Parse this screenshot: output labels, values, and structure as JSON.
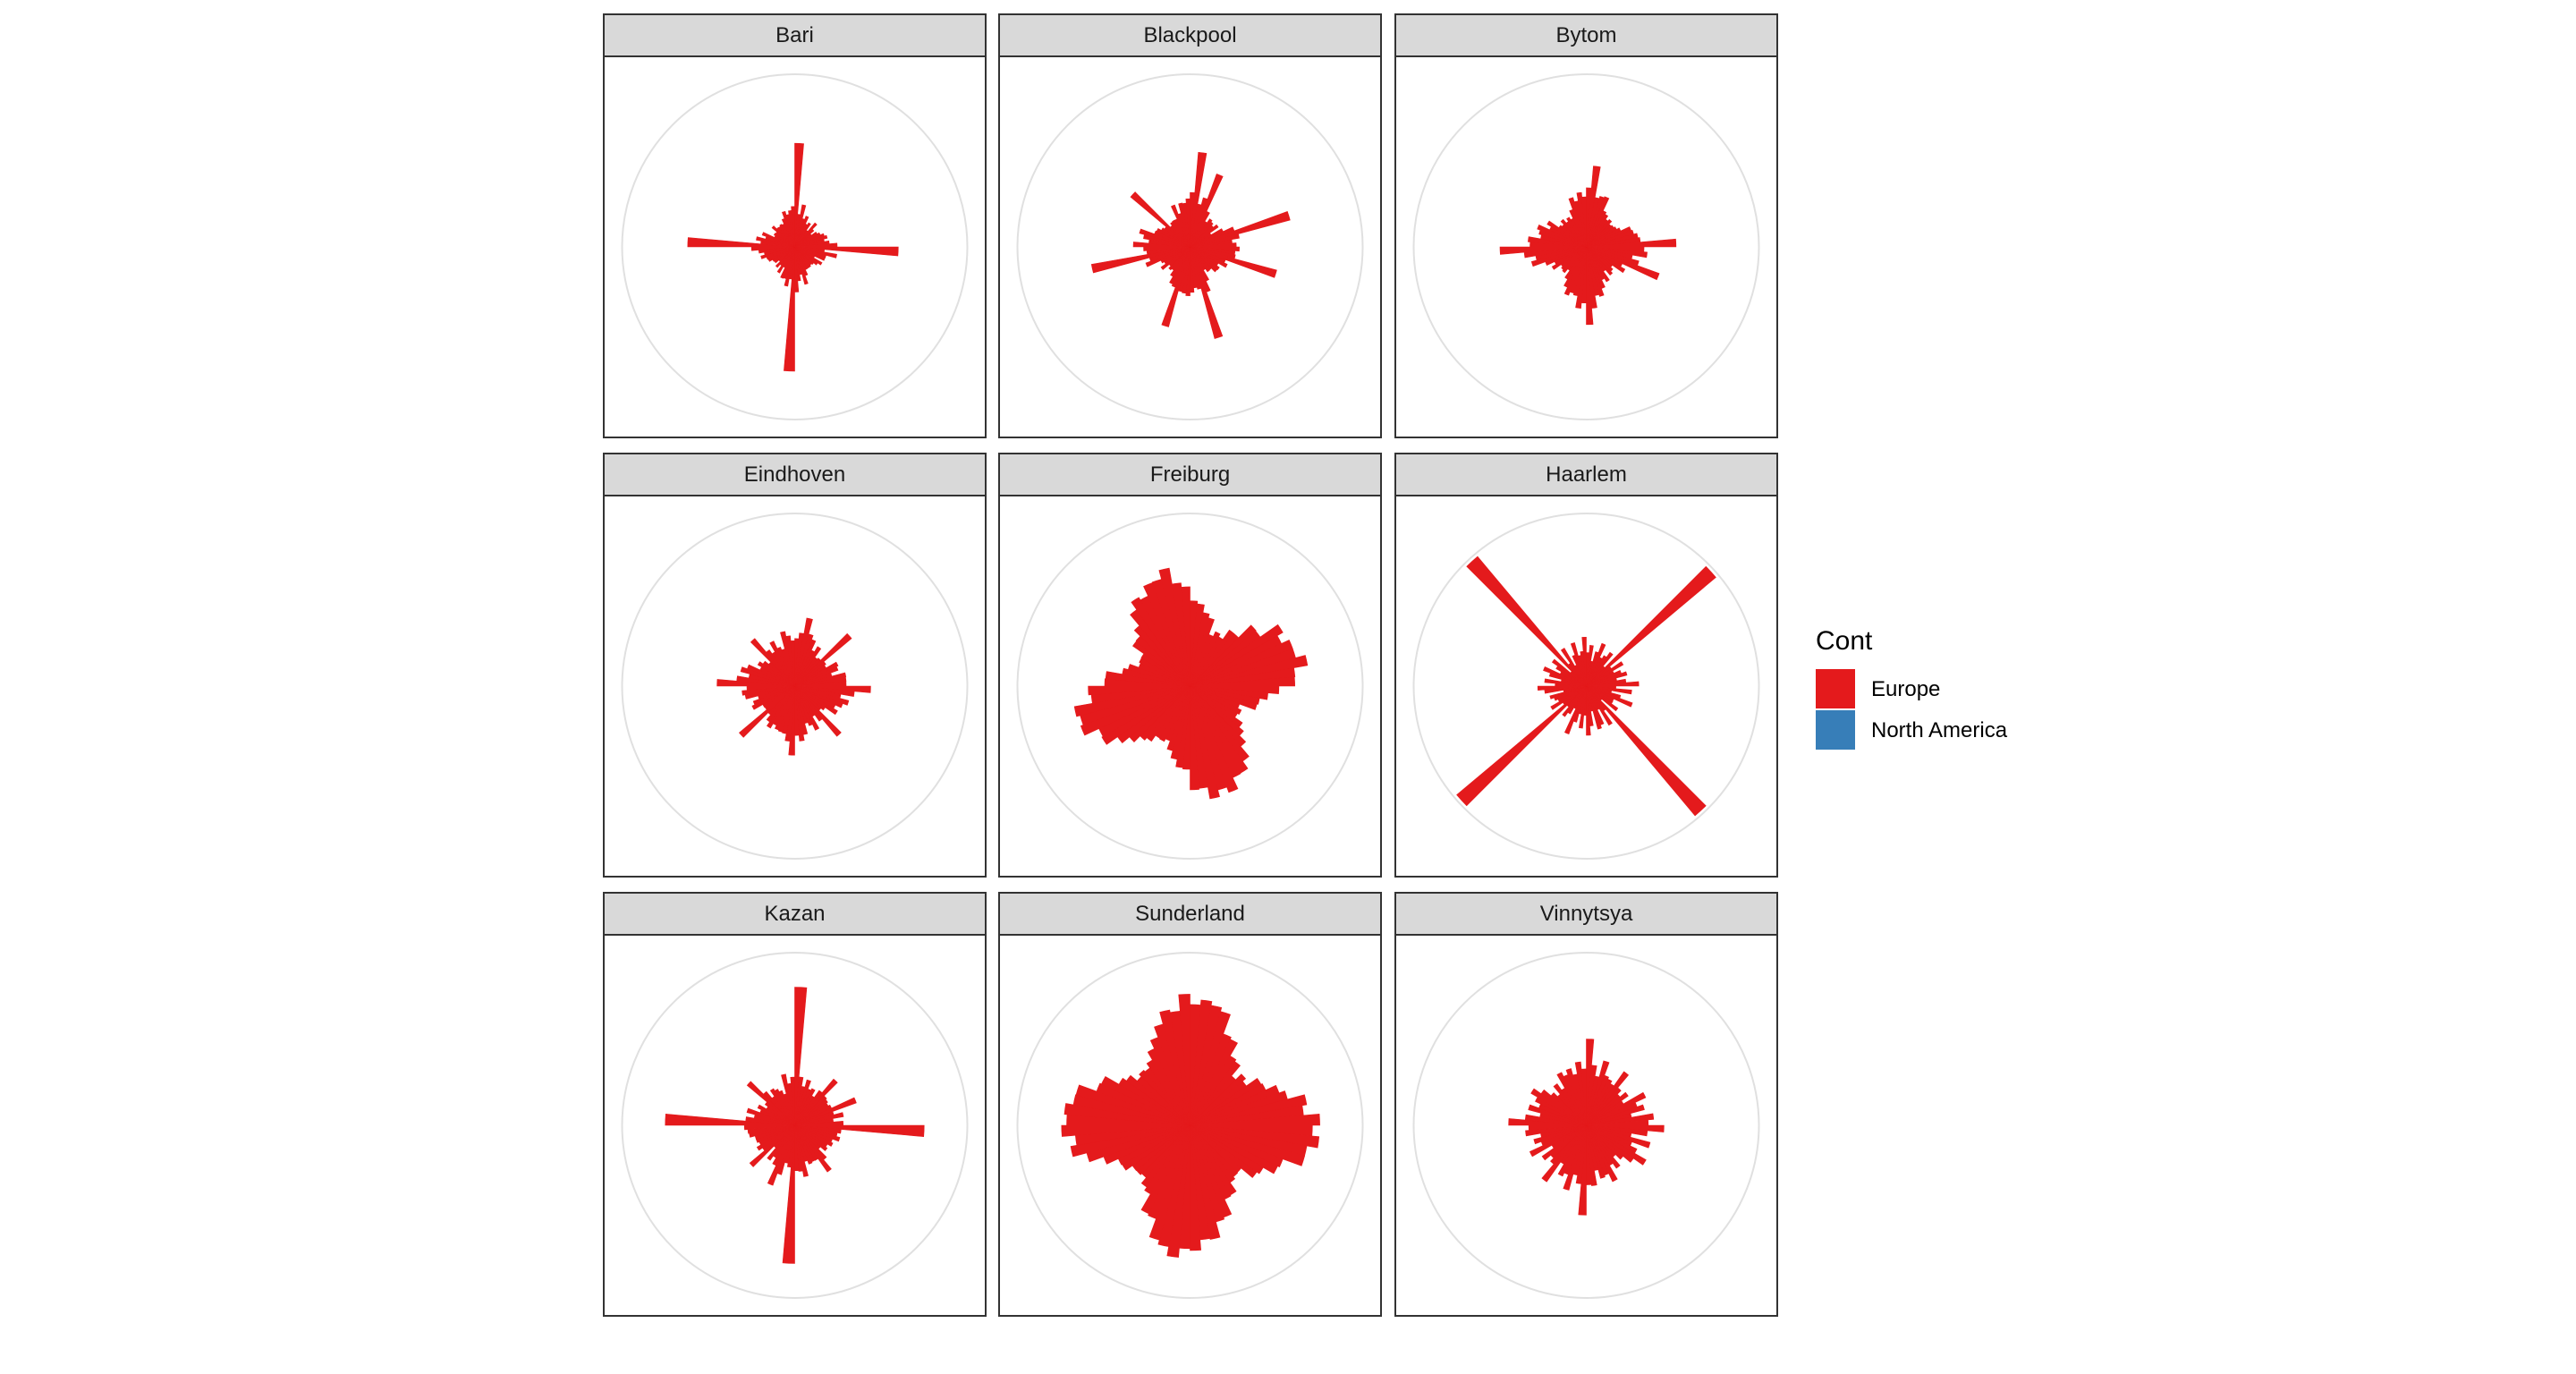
{
  "chart_data": {
    "type": "bar",
    "coord": "polar",
    "facet_by": "city",
    "colors": {
      "Europe": "#E41A1C",
      "North America": "#377EB8"
    },
    "strip_fill": "#d9d9d9",
    "panel_border": "#333333",
    "grid_color": "#e0e0e0",
    "grid": "on",
    "legend": {
      "title": "Cont",
      "placement": "right",
      "entries": [
        {
          "label": "Europe",
          "color": "#E41A1C"
        },
        {
          "label": "North America",
          "color": "#377EB8"
        }
      ]
    },
    "rmax": 1.0,
    "facets": [
      {
        "name": "Bari",
        "cont": "Europe",
        "bins": 72,
        "spikes": [
          [
            0,
            0.6
          ],
          [
            18,
            0.6
          ],
          [
            36,
            0.72
          ],
          [
            54,
            0.62
          ]
        ],
        "base": [
          0.14,
          0.12,
          0.16,
          0.13,
          0.15,
          0.12,
          0.14,
          0.13,
          0.16,
          0.14,
          0.12,
          0.15,
          0.13,
          0.14,
          0.16,
          0.12,
          0.14,
          0.15
        ],
        "shape": 1.0
      },
      {
        "name": "Blackpool",
        "cont": "Europe",
        "bins": 72,
        "spikes": [
          [
            1,
            0.55
          ],
          [
            14,
            0.6
          ],
          [
            21,
            0.52
          ],
          [
            32,
            0.55
          ],
          [
            51,
            0.58
          ],
          [
            62,
            0.45
          ],
          [
            4,
            0.45
          ],
          [
            39,
            0.48
          ]
        ],
        "base": [
          0.18,
          0.15,
          0.17,
          0.2,
          0.16,
          0.18,
          0.15,
          0.17,
          0.19,
          0.16,
          0.18,
          0.15,
          0.17,
          0.2,
          0.16,
          0.18,
          0.15,
          0.17
        ],
        "shape": 1.15
      },
      {
        "name": "Bytom",
        "cont": "Europe",
        "bins": 72,
        "spikes": [
          [
            1,
            0.47
          ],
          [
            17,
            0.52
          ],
          [
            35,
            0.45
          ],
          [
            53,
            0.5
          ],
          [
            22,
            0.45
          ]
        ],
        "base": [
          0.18,
          0.2,
          0.17,
          0.19,
          0.21,
          0.18,
          0.2,
          0.17,
          0.19,
          0.21,
          0.18,
          0.2,
          0.17,
          0.19,
          0.21,
          0.18,
          0.2,
          0.17
        ],
        "shape": 1.3
      },
      {
        "name": "Eindhoven",
        "cont": "Europe",
        "bins": 72,
        "spikes": [
          [
            9,
            0.43
          ],
          [
            27,
            0.38
          ],
          [
            45,
            0.42
          ],
          [
            63,
            0.36
          ],
          [
            18,
            0.44
          ],
          [
            54,
            0.45
          ],
          [
            36,
            0.4
          ],
          [
            2,
            0.4
          ]
        ],
        "base": [
          0.22,
          0.25,
          0.2,
          0.24,
          0.23,
          0.21,
          0.25,
          0.22,
          0.2,
          0.24,
          0.23,
          0.21,
          0.25,
          0.22,
          0.2,
          0.24,
          0.23,
          0.21
        ],
        "shape": 0.55
      },
      {
        "name": "Freiburg",
        "cont": "Europe",
        "bins": 72,
        "spikes": [],
        "base": [
          0.32,
          0.34,
          0.33,
          0.35,
          0.32,
          0.34,
          0.33,
          0.35,
          0.32,
          0.34,
          0.33,
          0.35,
          0.32,
          0.34,
          0.33,
          0.35,
          0.32,
          0.34
        ],
        "shape": 1.6,
        "rot": 0.35
      },
      {
        "name": "Haarlem",
        "cont": "Europe",
        "bins": 72,
        "spikes": [
          [
            9,
            0.98
          ],
          [
            27,
            0.98
          ],
          [
            45,
            0.98
          ],
          [
            63,
            0.98
          ]
        ],
        "base": [
          0.16,
          0.22,
          0.14,
          0.2,
          0.25,
          0.15,
          0.19,
          0.23,
          0.14,
          0.21,
          0.17,
          0.24,
          0.15,
          0.2,
          0.22,
          0.14,
          0.19,
          0.24
        ],
        "shape": 0.3
      },
      {
        "name": "Kazan",
        "cont": "Europe",
        "bins": 72,
        "spikes": [
          [
            0,
            0.8
          ],
          [
            18,
            0.75
          ],
          [
            36,
            0.8
          ],
          [
            54,
            0.75
          ],
          [
            8,
            0.35
          ],
          [
            28,
            0.33
          ],
          [
            45,
            0.34
          ],
          [
            62,
            0.36
          ],
          [
            13,
            0.38
          ],
          [
            40,
            0.37
          ]
        ],
        "base": [
          0.2,
          0.22,
          0.19,
          0.24,
          0.21,
          0.23,
          0.2,
          0.22,
          0.19,
          0.24,
          0.21,
          0.23,
          0.2,
          0.22,
          0.19,
          0.24,
          0.21,
          0.23
        ],
        "shape": 0.35
      },
      {
        "name": "Sunderland",
        "cont": "Europe",
        "bins": 72,
        "spikes": [],
        "base": [
          0.38,
          0.4,
          0.39,
          0.41,
          0.38,
          0.4,
          0.39,
          0.41,
          0.38,
          0.4,
          0.39,
          0.41,
          0.38,
          0.4,
          0.39,
          0.41,
          0.38,
          0.4
        ],
        "shape": 1.5,
        "rot": 0.0
      },
      {
        "name": "Vinnytsya",
        "cont": "Europe",
        "bins": 72,
        "spikes": [
          [
            0,
            0.5
          ],
          [
            18,
            0.45
          ],
          [
            36,
            0.52
          ],
          [
            54,
            0.45
          ],
          [
            7,
            0.38
          ],
          [
            24,
            0.4
          ],
          [
            43,
            0.4
          ],
          [
            60,
            0.37
          ],
          [
            12,
            0.38
          ],
          [
            30,
            0.36
          ]
        ],
        "base": [
          0.26,
          0.3,
          0.24,
          0.32,
          0.27,
          0.29,
          0.25,
          0.31,
          0.28,
          0.26,
          0.3,
          0.24,
          0.32,
          0.27,
          0.29,
          0.25,
          0.31,
          0.28
        ],
        "shape": 0.35
      }
    ]
  }
}
